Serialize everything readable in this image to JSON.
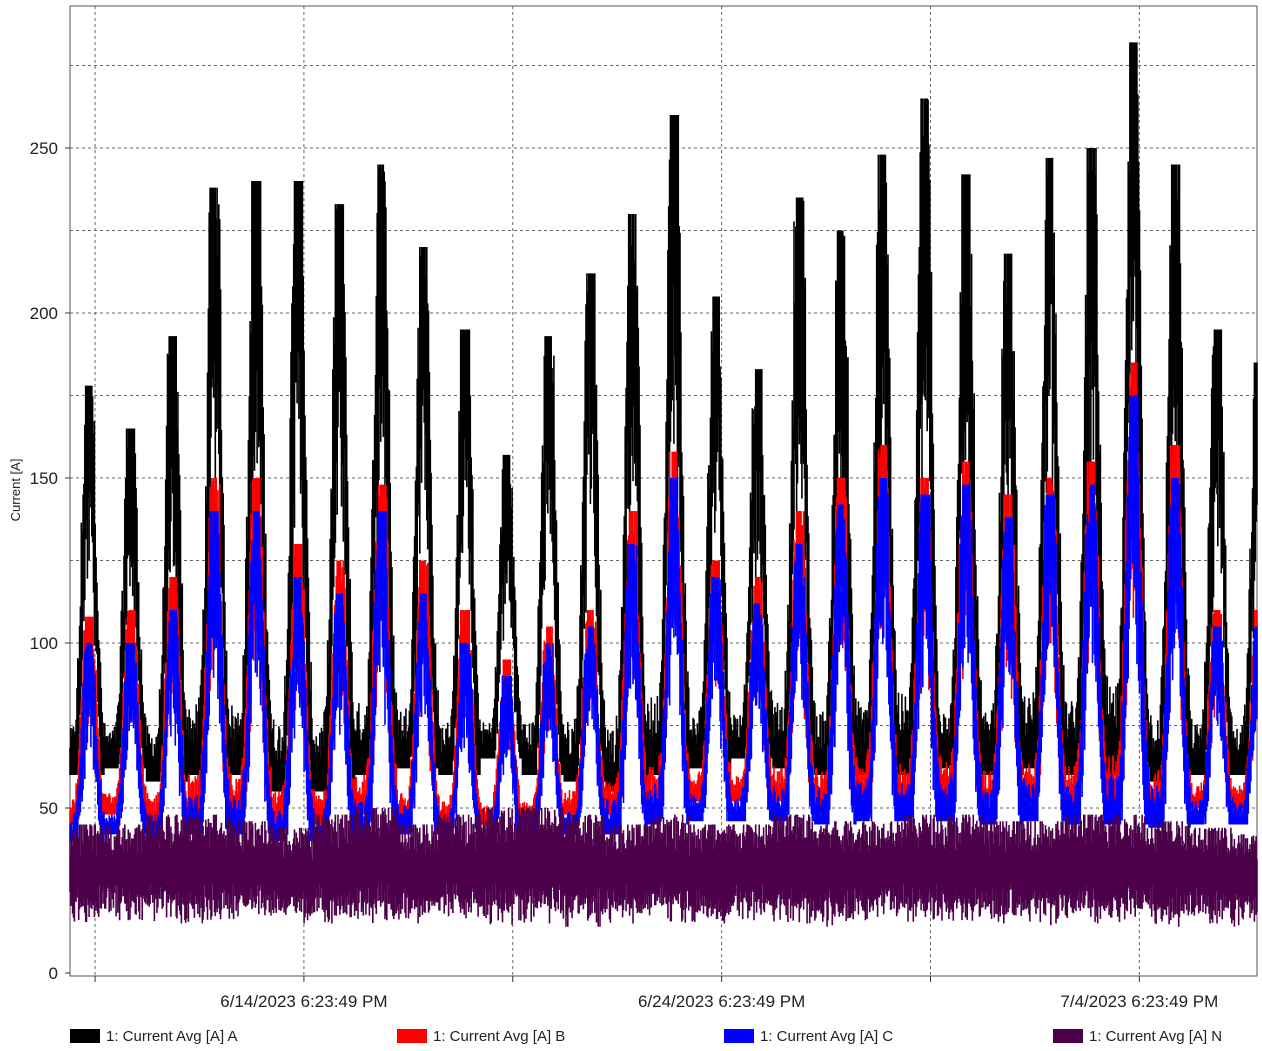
{
  "chart_data": {
    "type": "line",
    "title": "",
    "xlabel": "",
    "ylabel": "Current [A]",
    "ylim": [
      0,
      285
    ],
    "yticks": [
      0,
      50,
      100,
      150,
      200,
      250
    ],
    "ytick_labels": [
      "0",
      "50",
      "100",
      "150",
      "200",
      "250"
    ],
    "xlim": [
      "2023-06-09T04:00",
      "2023-07-07T14:00"
    ],
    "x_labeled_ticks": [
      {
        "x": "2023-06-14T18:23:49",
        "label": "6/14/2023 6:23:49 PM"
      },
      {
        "x": "2023-06-24T18:23:49",
        "label": "6/24/2023 6:23:49 PM"
      },
      {
        "x": "2023-07-04T18:23:49",
        "label": "7/4/2023 6:23:49 PM"
      }
    ],
    "x_minor_ticks": [
      "2023-06-09T18:23:49",
      "2023-06-19T18:23:49",
      "2023-06-29T18:23:49"
    ],
    "grid": true,
    "legend_position": "bottom",
    "x_daily": [
      "2023-06-09",
      "2023-06-10",
      "2023-06-11",
      "2023-06-12",
      "2023-06-13",
      "2023-06-14",
      "2023-06-15",
      "2023-06-16",
      "2023-06-17",
      "2023-06-18",
      "2023-06-19",
      "2023-06-20",
      "2023-06-21",
      "2023-06-22",
      "2023-06-23",
      "2023-06-24",
      "2023-06-25",
      "2023-06-26",
      "2023-06-27",
      "2023-06-28",
      "2023-06-29",
      "2023-06-30",
      "2023-07-01",
      "2023-07-02",
      "2023-07-03",
      "2023-07-04",
      "2023-07-05",
      "2023-07-06",
      "2023-07-07"
    ],
    "series": [
      {
        "name": "1: Current Avg [A] A",
        "color": "#000000",
        "daily_peak": [
          178,
          165,
          193,
          238,
          240,
          240,
          233,
          245,
          220,
          195,
          157,
          193,
          212,
          230,
          260,
          205,
          183,
          235,
          225,
          248,
          265,
          242,
          218,
          247,
          250,
          282,
          245,
          195,
          185
        ],
        "daily_min": [
          60,
          62,
          58,
          60,
          60,
          55,
          55,
          60,
          62,
          60,
          65,
          60,
          58,
          55,
          60,
          62,
          65,
          62,
          60,
          60,
          60,
          62,
          60,
          62,
          60,
          60,
          58,
          60,
          60
        ]
      },
      {
        "name": "1: Current Avg [A] B",
        "color": "#ff0000",
        "daily_peak": [
          108,
          110,
          120,
          150,
          150,
          130,
          125,
          148,
          125,
          110,
          95,
          105,
          110,
          140,
          158,
          125,
          120,
          140,
          150,
          160,
          150,
          155,
          145,
          150,
          155,
          185,
          160,
          110,
          110
        ],
        "daily_min": [
          45,
          48,
          45,
          48,
          48,
          45,
          45,
          48,
          45,
          45,
          45,
          45,
          48,
          48,
          50,
          52,
          52,
          52,
          50,
          52,
          52,
          52,
          50,
          52,
          50,
          50,
          48,
          50,
          50
        ]
      },
      {
        "name": "1: Current Avg [A] C",
        "color": "#0000ff",
        "daily_peak": [
          100,
          100,
          110,
          140,
          140,
          120,
          115,
          140,
          115,
          100,
          90,
          100,
          105,
          130,
          150,
          120,
          112,
          130,
          142,
          150,
          145,
          148,
          138,
          145,
          148,
          175,
          150,
          105,
          105
        ],
        "daily_min": [
          40,
          42,
          40,
          42,
          42,
          40,
          40,
          40,
          42,
          40,
          38,
          40,
          42,
          42,
          45,
          46,
          46,
          46,
          45,
          46,
          46,
          46,
          45,
          46,
          45,
          45,
          44,
          45,
          45
        ]
      },
      {
        "name": "1: Current Avg [A] N",
        "color": "#4b0049",
        "daily_peak": [
          45,
          45,
          48,
          48,
          46,
          44,
          48,
          50,
          45,
          48,
          50,
          50,
          48,
          45,
          48,
          45,
          45,
          48,
          46,
          46,
          48,
          48,
          46,
          46,
          48,
          48,
          46,
          44,
          42
        ],
        "daily_min": [
          15,
          16,
          15,
          15,
          16,
          15,
          15,
          14,
          15,
          16,
          14,
          15,
          14,
          15,
          15,
          15,
          16,
          15,
          14,
          15,
          15,
          15,
          15,
          14,
          15,
          15,
          14,
          15,
          14
        ]
      }
    ]
  }
}
